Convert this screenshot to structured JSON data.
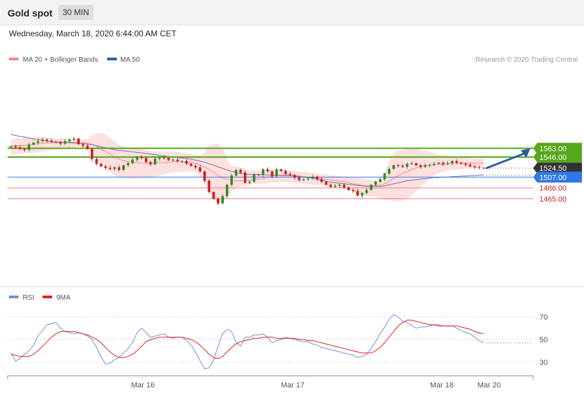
{
  "header": {
    "title": "Gold spot",
    "timeframe": "30 MIN",
    "date": "Wednesday, March 18, 2020 6:44:00 AM CET",
    "copyright": "Research © 2020 Trading Central"
  },
  "colors": {
    "bollinger": "#f48a8a",
    "band_fill": "#fde0e0",
    "ma50": "#6a74a8",
    "up": "#2e8b22",
    "down": "#cc1f1f",
    "resistance": "#56a81c",
    "support_main": "#2f78e6",
    "support": "#ef7f7f",
    "arrow": "#2b5f9e",
    "rsi": "#6f8fe0",
    "rsi_ma": "#e02020",
    "last": "#333333"
  },
  "chart_data": [
    {
      "type": "candlestick",
      "legend": [
        {
          "name": "MA 20 + Bollinger Bands",
          "color": "#f48a8a"
        },
        {
          "name": "MA 50",
          "color": "#2f5f9e"
        }
      ],
      "ylim": [
        1446,
        1586
      ],
      "x_ticks": [
        "Mar 16",
        "Mar 17",
        "Mar 18",
        "Mar 20"
      ],
      "last_price": "1524.50",
      "levels": [
        {
          "label": "1563.00",
          "value": 1563.0,
          "kind": "resistance"
        },
        {
          "label": "1546.00",
          "value": 1546.0,
          "kind": "resistance"
        },
        {
          "label": "1524.50",
          "value": 1524.5,
          "kind": "last"
        },
        {
          "label": "1507.00",
          "value": 1507.0,
          "kind": "pivot"
        },
        {
          "label": "1486.00",
          "value": 1486.0,
          "kind": "support"
        },
        {
          "label": "1465.00",
          "value": 1465.0,
          "kind": "support"
        }
      ],
      "forecast_target": 1563.0,
      "close_path": [
        1567,
        1565,
        1562,
        1560,
        1570,
        1574,
        1577,
        1580,
        1578,
        1576,
        1575,
        1572,
        1577,
        1580,
        1582,
        1571,
        1568,
        1562,
        1542,
        1533,
        1528,
        1525,
        1523,
        1526,
        1521,
        1530,
        1534,
        1541,
        1546,
        1544,
        1536,
        1532,
        1543,
        1545,
        1544,
        1540,
        1541,
        1538,
        1538,
        1533,
        1529,
        1526,
        1518,
        1500,
        1478,
        1465,
        1456,
        1470,
        1492,
        1510,
        1521,
        1516,
        1496,
        1498,
        1512,
        1511,
        1522,
        1518,
        1509,
        1522,
        1519,
        1513,
        1511,
        1506,
        1501,
        1503,
        1504,
        1508,
        1503,
        1498,
        1492,
        1488,
        1490,
        1492,
        1487,
        1482,
        1480,
        1471,
        1476,
        1482,
        1492,
        1498,
        1503,
        1514,
        1523,
        1530,
        1529,
        1527,
        1533,
        1534,
        1530,
        1527,
        1530,
        1531,
        1533,
        1535,
        1532,
        1534,
        1538,
        1535,
        1533,
        1531,
        1528,
        1526,
        1525,
        1524.5
      ],
      "bb_upper": [
        1580,
        1582,
        1583,
        1584,
        1585,
        1585,
        1585,
        1585,
        1584,
        1583,
        1582,
        1582,
        1582,
        1582,
        1582,
        1581,
        1581,
        1580,
        1589,
        1592,
        1593,
        1590,
        1583,
        1576,
        1570,
        1566,
        1565,
        1563,
        1562,
        1561,
        1560,
        1558,
        1557,
        1556,
        1556,
        1556,
        1556,
        1556,
        1555,
        1554,
        1552,
        1550,
        1549,
        1555,
        1568,
        1572,
        1572,
        1564,
        1540,
        1528,
        1528,
        1526,
        1522,
        1520,
        1520,
        1520,
        1520,
        1521,
        1522,
        1522,
        1522,
        1521,
        1520,
        1519,
        1518,
        1517,
        1516,
        1515,
        1514,
        1513,
        1512,
        1510,
        1510,
        1509,
        1508,
        1507,
        1506,
        1506,
        1504,
        1502,
        1500,
        1499,
        1500,
        1512,
        1538,
        1553,
        1558,
        1560,
        1562,
        1563,
        1562,
        1560,
        1558,
        1555,
        1553,
        1551,
        1550,
        1549,
        1548,
        1547,
        1546,
        1545,
        1544,
        1543,
        1543,
        1543
      ],
      "bb_mid": [
        1567,
        1568,
        1568,
        1569,
        1570,
        1571,
        1572,
        1573,
        1573,
        1574,
        1574,
        1574,
        1575,
        1575,
        1575,
        1574,
        1574,
        1573,
        1571,
        1567,
        1562,
        1557,
        1552,
        1547,
        1542,
        1539,
        1537,
        1536,
        1535,
        1534,
        1534,
        1534,
        1534,
        1535,
        1535,
        1536,
        1537,
        1537,
        1537,
        1536,
        1535,
        1534,
        1531,
        1527,
        1522,
        1516,
        1510,
        1506,
        1503,
        1501,
        1500,
        1500,
        1500,
        1501,
        1502,
        1503,
        1505,
        1507,
        1509,
        1510,
        1511,
        1511,
        1511,
        1510,
        1509,
        1508,
        1507,
        1506,
        1505,
        1504,
        1503,
        1501,
        1500,
        1499,
        1498,
        1496,
        1494,
        1493,
        1491,
        1490,
        1490,
        1490,
        1491,
        1494,
        1499,
        1505,
        1510,
        1514,
        1518,
        1522,
        1525,
        1527,
        1529,
        1530,
        1531,
        1532,
        1532,
        1533,
        1534,
        1534,
        1534,
        1534,
        1534,
        1534,
        1534,
        1534
      ],
      "bb_lower": [
        1550,
        1551,
        1552,
        1553,
        1553,
        1554,
        1556,
        1557,
        1558,
        1560,
        1561,
        1562,
        1563,
        1564,
        1565,
        1566,
        1566,
        1565,
        1553,
        1542,
        1531,
        1523,
        1517,
        1512,
        1507,
        1505,
        1504,
        1504,
        1504,
        1505,
        1505,
        1506,
        1508,
        1510,
        1512,
        1514,
        1516,
        1517,
        1518,
        1518,
        1518,
        1518,
        1510,
        1495,
        1480,
        1466,
        1456,
        1458,
        1470,
        1480,
        1485,
        1488,
        1492,
        1494,
        1494,
        1494,
        1494,
        1495,
        1496,
        1497,
        1497,
        1497,
        1497,
        1496,
        1495,
        1494,
        1493,
        1492,
        1492,
        1492,
        1491,
        1489,
        1487,
        1486,
        1484,
        1482,
        1478,
        1475,
        1472,
        1470,
        1470,
        1468,
        1465,
        1462,
        1462,
        1460,
        1460,
        1461,
        1465,
        1472,
        1480,
        1488,
        1495,
        1503,
        1510,
        1515,
        1518,
        1520,
        1521,
        1522,
        1522,
        1523,
        1524,
        1525,
        1525,
        1525
      ],
      "ma50": [
        1590,
        1588,
        1586,
        1585,
        1583,
        1581,
        1580,
        1579,
        1577,
        1576,
        1575,
        1575,
        1574,
        1574,
        1573,
        1573,
        1572,
        1571,
        1570,
        1568,
        1566,
        1564,
        1562,
        1560,
        1559,
        1558,
        1557,
        1556,
        1555,
        1554,
        1553,
        1552,
        1551,
        1549,
        1548,
        1547,
        1546,
        1545,
        1544,
        1543,
        1542,
        1540,
        1538,
        1536,
        1533,
        1530,
        1527,
        1524,
        1521,
        1518,
        1516,
        1514,
        1513,
        1512,
        1512,
        1512,
        1512,
        1511,
        1511,
        1511,
        1510,
        1510,
        1510,
        1509,
        1508,
        1507,
        1506,
        1505,
        1503,
        1501,
        1499,
        1497,
        1496,
        1495,
        1494,
        1493,
        1492,
        1491,
        1490,
        1489,
        1489,
        1489,
        1489,
        1490,
        1492,
        1494,
        1496,
        1498,
        1500,
        1501,
        1502,
        1503,
        1504,
        1505,
        1506,
        1506,
        1507,
        1507,
        1508,
        1508,
        1509,
        1509,
        1510,
        1510,
        1511,
        1511
      ]
    },
    {
      "type": "line",
      "legend": [
        {
          "name": "RSI",
          "color": "#6f8fe0"
        },
        {
          "name": "9MA",
          "color": "#e02020"
        }
      ],
      "y_ticks": [
        70,
        50,
        30
      ],
      "ylim": [
        20,
        80
      ],
      "series": [
        {
          "name": "RSI",
          "values": [
            38,
            31,
            33,
            37,
            40,
            45,
            53,
            58,
            63,
            64,
            65,
            60,
            57,
            56,
            55,
            56,
            55,
            53,
            50,
            43,
            35,
            28,
            29,
            32,
            34,
            38,
            42,
            47,
            56,
            60,
            56,
            52,
            53,
            54,
            55,
            52,
            51,
            52,
            52,
            49,
            45,
            39,
            31,
            24,
            25,
            32,
            44,
            55,
            59,
            57,
            47,
            44,
            52,
            52,
            54,
            54,
            55,
            52,
            47,
            49,
            50,
            52,
            51,
            50,
            49,
            48,
            48,
            46,
            45,
            43,
            42,
            41,
            40,
            39,
            38,
            37,
            36,
            34,
            35,
            37,
            42,
            48,
            55,
            61,
            68,
            72,
            70,
            66,
            65,
            62,
            60,
            61,
            61,
            62,
            63,
            63,
            62,
            62,
            62,
            60,
            58,
            56,
            55,
            52,
            49,
            47
          ]
        },
        {
          "name": "9MA",
          "values": [
            37,
            36,
            35,
            35,
            35,
            37,
            40,
            44,
            48,
            52,
            55,
            57,
            57,
            57,
            57,
            56,
            55,
            54,
            52,
            50,
            47,
            43,
            39,
            36,
            34,
            34,
            35,
            37,
            40,
            44,
            48,
            50,
            51,
            52,
            52,
            52,
            52,
            52,
            52,
            51,
            50,
            48,
            45,
            41,
            37,
            34,
            33,
            35,
            39,
            43,
            46,
            48,
            49,
            50,
            51,
            51,
            52,
            52,
            52,
            51,
            51,
            51,
            51,
            51,
            50,
            50,
            49,
            49,
            48,
            47,
            46,
            45,
            44,
            43,
            42,
            41,
            40,
            39,
            38,
            38,
            38,
            40,
            43,
            47,
            52,
            57,
            62,
            65,
            67,
            67,
            66,
            65,
            64,
            63,
            63,
            62,
            62,
            62,
            62,
            62,
            61,
            60,
            59,
            57,
            56,
            55
          ]
        }
      ]
    }
  ]
}
